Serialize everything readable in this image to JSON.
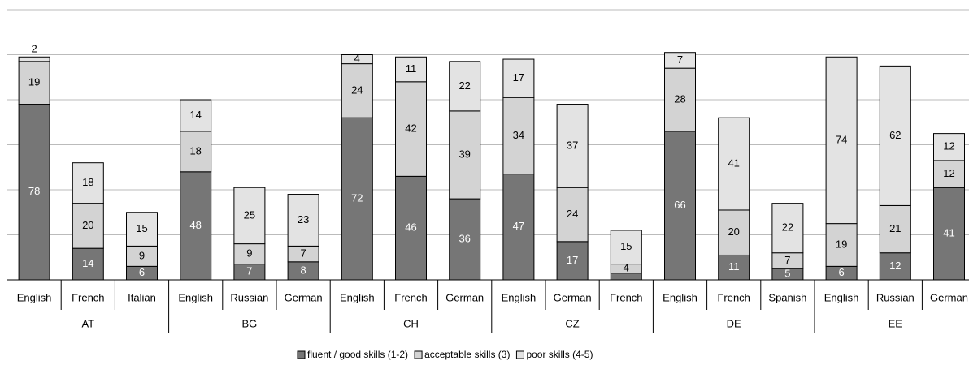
{
  "chart_data": {
    "type": "bar",
    "stacked": true,
    "groups": [
      {
        "label": "AT",
        "categories": [
          "English",
          "French",
          "Italian"
        ]
      },
      {
        "label": "BG",
        "categories": [
          "English",
          "Russian",
          "German"
        ]
      },
      {
        "label": "CH",
        "categories": [
          "English",
          "French",
          "German"
        ]
      },
      {
        "label": "CZ",
        "categories": [
          "English",
          "German",
          "French"
        ]
      },
      {
        "label": "DE",
        "categories": [
          "English",
          "French",
          "Spanish"
        ]
      },
      {
        "label": "EE",
        "categories": [
          "English",
          "Russian",
          "German"
        ]
      }
    ],
    "series": [
      {
        "name": "fluent / good skills (1-2)",
        "color": "#767676",
        "values": [
          78,
          14,
          6,
          48,
          7,
          8,
          72,
          46,
          36,
          47,
          17,
          3,
          66,
          11,
          5,
          6,
          12,
          41
        ],
        "value_labels": [
          "78",
          "14",
          "6",
          "48",
          "7",
          "8",
          "72",
          "46",
          "36",
          "47",
          "17",
          null,
          "66",
          "11",
          "5",
          "6",
          "12",
          "41"
        ]
      },
      {
        "name": "acceptable skills (3)",
        "color": "#d3d3d3",
        "values": [
          19,
          20,
          9,
          18,
          9,
          7,
          24,
          42,
          39,
          34,
          24,
          4,
          28,
          20,
          7,
          19,
          21,
          12
        ]
      },
      {
        "name": "poor skills (4-5)",
        "color": "#e3e3e3",
        "values": [
          2,
          18,
          15,
          14,
          25,
          23,
          4,
          11,
          22,
          17,
          37,
          15,
          7,
          41,
          22,
          74,
          62,
          12
        ]
      }
    ],
    "ylim": [
      0,
      120
    ],
    "yticks": [
      0,
      20,
      40,
      60,
      80,
      100,
      120
    ],
    "grid": true,
    "legend": "bottom"
  }
}
